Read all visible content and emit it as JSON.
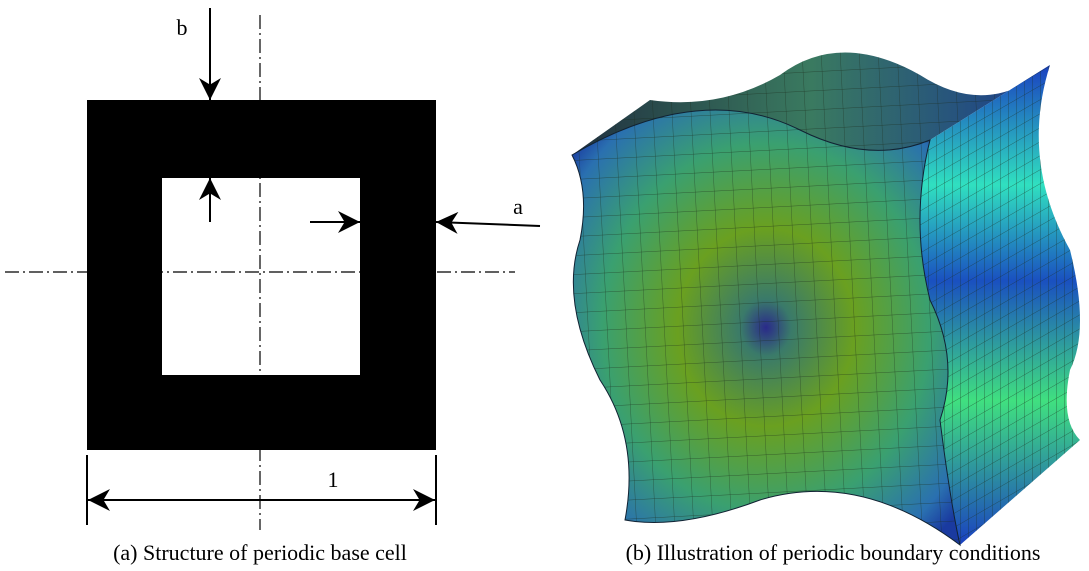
{
  "panel_a": {
    "label_b": "b",
    "label_a": "a",
    "dimension": "1",
    "caption": "(a) Structure of periodic base cell"
  },
  "panel_b": {
    "caption": "(b) Illustration of periodic boundary conditions"
  }
}
